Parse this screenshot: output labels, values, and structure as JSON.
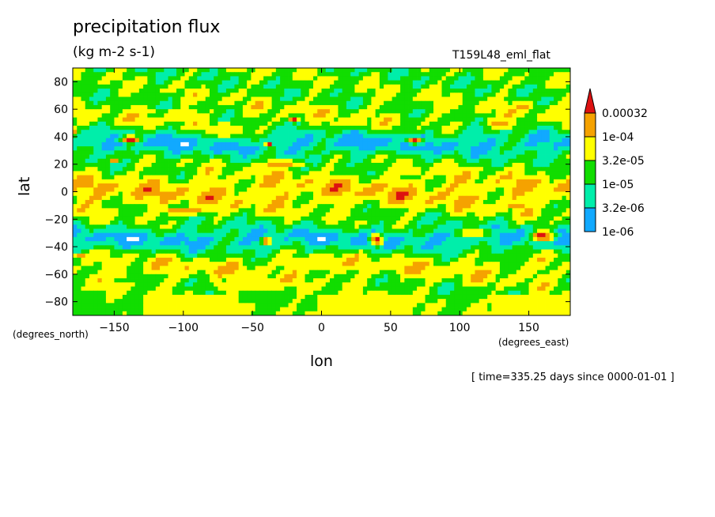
{
  "chart_data": {
    "type": "heatmap",
    "title": "precipitation flux",
    "subtitle": "(kg m-2 s-1)",
    "run_label": "T159L48_eml_flat",
    "footer": "[ time=335.25 days since 0000-01-01 ]",
    "xlabel": "lon",
    "ylabel": "lat",
    "x_units": "(degrees_east)",
    "y_units": "(degrees_north)",
    "xlim": [
      -180,
      180
    ],
    "ylim": [
      -90,
      90
    ],
    "x_ticks": [
      -150,
      -100,
      -50,
      0,
      50,
      100,
      150
    ],
    "x_tick_labels": [
      "−150",
      "−100",
      "−50",
      "0",
      "50",
      "100",
      "150"
    ],
    "y_ticks": [
      -80,
      -60,
      -40,
      -20,
      0,
      20,
      40,
      60,
      80
    ],
    "y_tick_labels": [
      "−80",
      "−60",
      "−40",
      "−20",
      "0",
      "20",
      "40",
      "60",
      "80"
    ],
    "colorbar": {
      "labels": [
        "0.00032",
        "1e-04",
        "3.2e-05",
        "1e-05",
        "3.2e-06",
        "1e-06"
      ],
      "colors": [
        "#dd1111",
        "#f5a200",
        "#ffff00",
        "#11dd00",
        "#00eeaa",
        "#11a9ff"
      ],
      "extend": "max"
    },
    "background_color": "#ffffff"
  }
}
